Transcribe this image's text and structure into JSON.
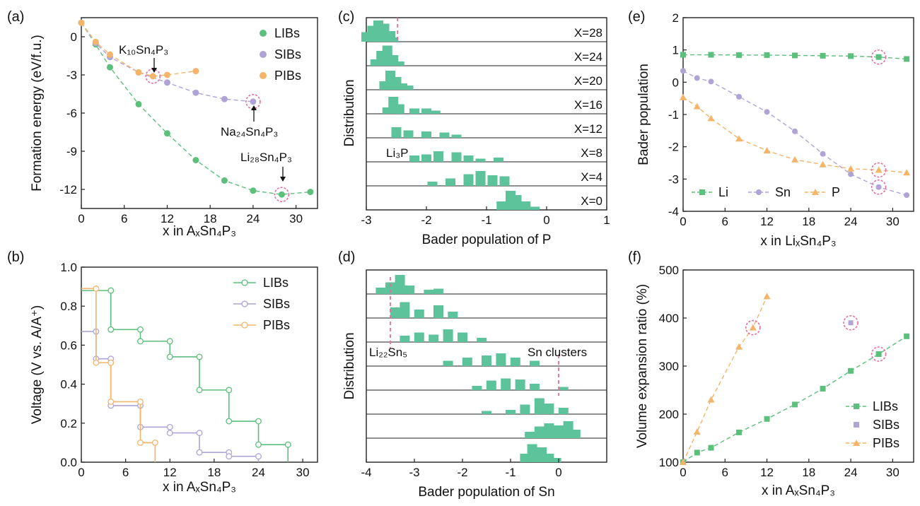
{
  "figure": {
    "panels": [
      {
        "id": "a",
        "label": "(a)",
        "xlabel": "x in AₓSn₄P₃",
        "ylabel": "Formation energy (eV/f.u.)",
        "annotations": [
          "K₁₀Sn₄P₃",
          "Na₂₄Sn₄P₃",
          "Li₂₈Sn₄P₃"
        ]
      },
      {
        "id": "b",
        "label": "(b)",
        "xlabel": "x in AₓSn₄P₃",
        "ylabel": "Voltage (V vs. A/A⁺)"
      },
      {
        "id": "c",
        "label": "(c)",
        "xlabel": "Bader population of P",
        "ylabel": "Distribution",
        "annotations": [
          "Li₃P"
        ]
      },
      {
        "id": "d",
        "label": "(d)",
        "xlabel": "Bader population of Sn",
        "ylabel": "Distribution",
        "annotations": [
          "Li₂₂Sn₅",
          "Sn clusters"
        ]
      },
      {
        "id": "e",
        "label": "(e)",
        "xlabel": "x in LiₓSn₄P₃",
        "ylabel": "Bader population"
      },
      {
        "id": "f",
        "label": "(f)",
        "xlabel": "x in AₓSn₄P₃",
        "ylabel": "Volume expansion ratio (%)"
      }
    ],
    "colors": {
      "green": "#5cbf7c",
      "purple": "#b0a3d6",
      "orange": "#f4b46a",
      "marker_circle": "#e26fa0",
      "hist": "#5cc39a"
    }
  },
  "chart_data": [
    {
      "panel": "a",
      "type": "scatter",
      "xlim": [
        0,
        33
      ],
      "ylim": [
        -13.5,
        1.5
      ],
      "xticks": [
        "0",
        "6",
        "12",
        "18",
        "24",
        "30"
      ],
      "yticks": [
        "0",
        "-3",
        "-6",
        "-9",
        "-12"
      ],
      "legend_position": "top-right",
      "series": [
        {
          "name": "LIBs",
          "x": [
            0,
            2,
            4,
            8,
            12,
            16,
            20,
            24,
            28,
            32
          ],
          "y": [
            1.1,
            -0.6,
            -2.4,
            -5.3,
            -7.6,
            -9.7,
            -11.3,
            -12.1,
            -12.4,
            -12.2
          ]
        },
        {
          "name": "SIBs",
          "x": [
            0,
            2,
            4,
            8,
            12,
            16,
            20,
            24
          ],
          "y": [
            1.1,
            -0.5,
            -1.6,
            -2.8,
            -3.6,
            -4.4,
            -4.9,
            -5.1
          ]
        },
        {
          "name": "PIBs",
          "x": [
            0,
            2,
            4,
            8,
            10,
            12,
            16
          ],
          "y": [
            1.1,
            -0.4,
            -1.4,
            -2.8,
            -3.1,
            -3.0,
            -2.7
          ]
        }
      ],
      "highlighted": [
        {
          "x": 10,
          "y": -3.1
        },
        {
          "x": 24,
          "y": -5.1
        },
        {
          "x": 28,
          "y": -12.4
        }
      ]
    },
    {
      "panel": "b",
      "type": "line",
      "xlim": [
        0,
        32
      ],
      "ylim": [
        0,
        1.0
      ],
      "xticks": [
        "0",
        "6",
        "12",
        "18",
        "24",
        "30"
      ],
      "yticks": [
        "0.0",
        "0.2",
        "0.4",
        "0.6",
        "0.8",
        "1.0"
      ],
      "legend_position": "top-right",
      "series": [
        {
          "name": "LIBs",
          "x": [
            0,
            4,
            8,
            12,
            16,
            20,
            24,
            28
          ],
          "y": [
            0.88,
            0.68,
            0.62,
            0.54,
            0.37,
            0.21,
            0.09,
            0.0
          ]
        },
        {
          "name": "SIBs",
          "x": [
            0,
            2,
            4,
            8,
            12,
            16,
            20,
            24
          ],
          "y": [
            0.67,
            0.53,
            0.29,
            0.18,
            0.15,
            0.05,
            0.03,
            0.0
          ]
        },
        {
          "name": "PIBs",
          "x": [
            0,
            2,
            4,
            8,
            10
          ],
          "y": [
            0.89,
            0.51,
            0.31,
            0.1,
            0.0
          ]
        }
      ]
    },
    {
      "panel": "c",
      "type": "histogram",
      "xlim": [
        -3,
        1
      ],
      "xticks": [
        "-3",
        "-2",
        "-1",
        "0",
        "1"
      ],
      "reference_x": -2.48,
      "rows": [
        {
          "label": "X=28",
          "bins": [
            [
              -3.0,
              0.45
            ],
            [
              -2.9,
              0.75
            ],
            [
              -2.8,
              1.0
            ],
            [
              -2.7,
              0.85
            ],
            [
              -2.6,
              0.5
            ],
            [
              -2.55,
              0.2
            ]
          ]
        },
        {
          "label": "X=24",
          "bins": [
            [
              -2.85,
              0.3
            ],
            [
              -2.75,
              0.7
            ],
            [
              -2.65,
              0.95
            ],
            [
              -2.55,
              0.5
            ],
            [
              -2.45,
              0.2
            ]
          ]
        },
        {
          "label": "X=20",
          "bins": [
            [
              -2.7,
              0.4
            ],
            [
              -2.6,
              0.9
            ],
            [
              -2.5,
              0.6
            ],
            [
              -2.4,
              0.3
            ],
            [
              -2.3,
              0.2
            ]
          ]
        },
        {
          "label": "X=16",
          "bins": [
            [
              -2.65,
              0.3
            ],
            [
              -2.55,
              0.8
            ],
            [
              -2.45,
              0.45
            ],
            [
              -2.2,
              0.25
            ],
            [
              -2.0,
              0.25
            ],
            [
              -1.85,
              0.15
            ]
          ]
        },
        {
          "label": "X=12",
          "bins": [
            [
              -2.5,
              0.5
            ],
            [
              -2.3,
              0.35
            ],
            [
              -2.0,
              0.3
            ],
            [
              -1.7,
              0.25
            ],
            [
              -1.5,
              0.15
            ]
          ]
        },
        {
          "label": "X=8",
          "bins": [
            [
              -2.2,
              0.3
            ],
            [
              -2.0,
              0.35
            ],
            [
              -1.8,
              0.5
            ],
            [
              -1.5,
              0.45
            ],
            [
              -1.3,
              0.3
            ],
            [
              -1.1,
              0.15
            ],
            [
              -0.8,
              0.2
            ]
          ]
        },
        {
          "label": "X=4",
          "bins": [
            [
              -1.9,
              0.2
            ],
            [
              -1.6,
              0.35
            ],
            [
              -1.3,
              0.55
            ],
            [
              -1.1,
              0.7
            ],
            [
              -0.9,
              0.5
            ],
            [
              -0.7,
              0.45
            ]
          ]
        },
        {
          "label": "X=0",
          "bins": [
            [
              -0.75,
              0.4
            ],
            [
              -0.6,
              0.9
            ],
            [
              -0.5,
              0.7
            ],
            [
              -0.35,
              0.4
            ],
            [
              -0.2,
              0.15
            ]
          ]
        }
      ]
    },
    {
      "panel": "d",
      "type": "histogram",
      "xlim": [
        -4,
        1
      ],
      "xticks": [
        "-4",
        "-3",
        "-2",
        "-1",
        "0"
      ],
      "reference_x": [
        -3.5,
        0.0
      ],
      "rows": [
        {
          "bins": [
            [
              -3.7,
              0.3
            ],
            [
              -3.5,
              0.55
            ],
            [
              -3.3,
              0.9
            ],
            [
              -3.1,
              0.4
            ],
            [
              -2.7,
              0.2
            ],
            [
              -2.5,
              0.25
            ]
          ]
        },
        {
          "bins": [
            [
              -3.4,
              0.5
            ],
            [
              -3.2,
              0.75
            ],
            [
              -2.9,
              0.4
            ],
            [
              -2.5,
              0.6
            ],
            [
              -2.2,
              0.3
            ]
          ]
        },
        {
          "bins": [
            [
              -3.2,
              0.3
            ],
            [
              -2.9,
              0.45
            ],
            [
              -2.6,
              0.35
            ],
            [
              -2.3,
              0.6
            ],
            [
              -2.0,
              0.45
            ],
            [
              -1.6,
              0.2
            ]
          ]
        },
        {
          "bins": [
            [
              -2.3,
              0.25
            ],
            [
              -1.9,
              0.4
            ],
            [
              -1.5,
              0.5
            ],
            [
              -1.2,
              0.6
            ],
            [
              -0.9,
              0.4
            ],
            [
              -0.5,
              0.25
            ]
          ]
        },
        {
          "bins": [
            [
              -1.7,
              0.2
            ],
            [
              -1.4,
              0.45
            ],
            [
              -1.1,
              0.55
            ],
            [
              -0.8,
              0.5
            ],
            [
              -0.5,
              0.3
            ],
            [
              0.1,
              0.15
            ]
          ]
        },
        {
          "bins": [
            [
              -1.5,
              0.15
            ],
            [
              -1.0,
              0.2
            ],
            [
              -0.7,
              0.45
            ],
            [
              -0.4,
              0.75
            ],
            [
              -0.2,
              0.5
            ],
            [
              0.1,
              0.3
            ]
          ]
        },
        {
          "bins": [
            [
              -0.6,
              0.3
            ],
            [
              -0.4,
              0.55
            ],
            [
              -0.2,
              0.7
            ],
            [
              0.0,
              0.6
            ],
            [
              0.2,
              0.8
            ],
            [
              0.35,
              0.4
            ]
          ]
        },
        {
          "bins": [
            [
              -0.7,
              0.4
            ],
            [
              -0.55,
              0.85
            ],
            [
              -0.45,
              0.6
            ],
            [
              -0.35,
              0.7
            ],
            [
              -0.2,
              0.4
            ],
            [
              -0.05,
              0.2
            ]
          ]
        }
      ]
    },
    {
      "panel": "e",
      "type": "line",
      "xlim": [
        0,
        33
      ],
      "ylim": [
        -4,
        2
      ],
      "xticks": [
        "0",
        "6",
        "12",
        "18",
        "24",
        "30"
      ],
      "yticks": [
        "2",
        "1",
        "0",
        "-1",
        "-2",
        "-3",
        "-4"
      ],
      "legend_position": "bottom-left",
      "series": [
        {
          "name": "Li",
          "x": [
            0,
            4,
            8,
            12,
            16,
            20,
            24,
            28,
            32
          ],
          "y": [
            0.85,
            0.85,
            0.84,
            0.84,
            0.83,
            0.82,
            0.81,
            0.78,
            0.72
          ]
        },
        {
          "name": "Sn",
          "x": [
            0,
            2,
            4,
            8,
            12,
            16,
            20,
            24,
            28,
            32
          ],
          "y": [
            0.35,
            0.13,
            0.02,
            -0.45,
            -0.92,
            -1.52,
            -2.22,
            -2.85,
            -3.25,
            -3.5
          ]
        },
        {
          "name": "P",
          "x": [
            0,
            2,
            4,
            8,
            12,
            16,
            20,
            24,
            28,
            32
          ],
          "y": [
            -0.47,
            -0.75,
            -1.12,
            -1.75,
            -2.12,
            -2.4,
            -2.55,
            -2.68,
            -2.72,
            -2.8
          ]
        }
      ],
      "highlighted": [
        {
          "x": 28,
          "y": 0.78
        },
        {
          "x": 28,
          "y": -2.72
        },
        {
          "x": 28,
          "y": -3.25
        }
      ]
    },
    {
      "panel": "f",
      "type": "line",
      "xlim": [
        0,
        33
      ],
      "ylim": [
        100,
        500
      ],
      "xticks": [
        "0",
        "6",
        "12",
        "18",
        "24",
        "30"
      ],
      "yticks": [
        "100",
        "200",
        "300",
        "400",
        "500"
      ],
      "legend_position": "bottom-right",
      "series": [
        {
          "name": "LIBs",
          "x": [
            0,
            2,
            4,
            8,
            12,
            16,
            20,
            24,
            28,
            32
          ],
          "y": [
            100,
            120,
            130,
            162,
            190,
            220,
            253,
            290,
            325,
            362
          ]
        },
        {
          "name": "SIBs",
          "x": [
            0,
            24
          ],
          "y": [
            100,
            390
          ]
        },
        {
          "name": "PIBs",
          "x": [
            0,
            2,
            4,
            8,
            10,
            12
          ],
          "y": [
            100,
            163,
            230,
            340,
            380,
            445
          ]
        }
      ],
      "highlighted": [
        {
          "x": 10,
          "y": 380
        },
        {
          "x": 24,
          "y": 390
        },
        {
          "x": 28,
          "y": 325
        }
      ]
    }
  ]
}
